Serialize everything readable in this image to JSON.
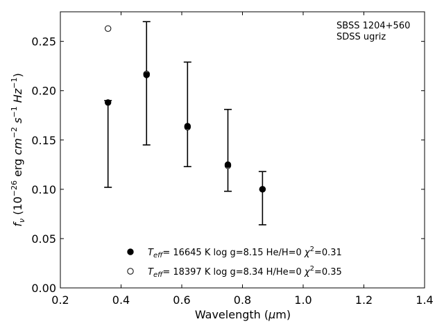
{
  "chart_data": {
    "type": "scatter",
    "title": "",
    "annotations": [
      "SBSS 1204+560",
      "SDSS ugriz"
    ],
    "xlabel": {
      "pre": "Wavelength (",
      "greek": "μ",
      "post": "m)"
    },
    "ylabel": {
      "lead": "f",
      "sub": "ν",
      "rest": " (10",
      "exp1": "−26",
      "mid": " erg ",
      "cm": "cm",
      "exp2": "−2",
      "s": "s",
      "exp3": "−1",
      "hz": "Hz",
      "exp4": "−1",
      "close": ")"
    },
    "xlim": [
      0.2,
      1.4
    ],
    "ylim": [
      0.0,
      0.28
    ],
    "xticks": [
      "0.2",
      "0.4",
      "0.6",
      "0.8",
      "1.0",
      "1.2",
      "1.4"
    ],
    "yticks": [
      "0.00",
      "0.05",
      "0.10",
      "0.15",
      "0.20",
      "0.25"
    ],
    "grid": false,
    "legend_position": "bottom-center",
    "errorbars": [
      {
        "x": 0.357,
        "y": 0.19,
        "ylow": 0.102,
        "yhigh": 0.19
      },
      {
        "x": 0.484,
        "y": 0.216,
        "ylow": 0.145,
        "yhigh": 0.27
      },
      {
        "x": 0.619,
        "y": 0.163,
        "ylow": 0.123,
        "yhigh": 0.229
      },
      {
        "x": 0.752,
        "y": 0.125,
        "ylow": 0.098,
        "yhigh": 0.181
      },
      {
        "x": 0.866,
        "y": 0.1,
        "ylow": 0.064,
        "yhigh": 0.118
      }
    ],
    "series": [
      {
        "marker": "filled",
        "legend": {
          "teff": "T",
          "teff_sub": "eff",
          "text": "= 16645 K  log g=8.15  He/H=0  ",
          "chi": "χ",
          "chi_exp": "2",
          "chi_val": "=0.31"
        },
        "points": [
          {
            "x": 0.357,
            "y": 0.188
          },
          {
            "x": 0.484,
            "y": 0.216
          },
          {
            "x": 0.619,
            "y": 0.164
          },
          {
            "x": 0.752,
            "y": 0.125
          },
          {
            "x": 0.866,
            "y": 0.1
          }
        ]
      },
      {
        "marker": "open",
        "legend": {
          "teff": "T",
          "teff_sub": "eff",
          "text": "= 18397 K  log g=8.34  H/He=0  ",
          "chi": "χ",
          "chi_exp": "2",
          "chi_val": "=0.35"
        },
        "points": [
          {
            "x": 0.357,
            "y": 0.263
          },
          {
            "x": 0.484,
            "y": 0.217
          },
          {
            "x": 0.619,
            "y": 0.163
          },
          {
            "x": 0.752,
            "y": 0.124
          },
          {
            "x": 0.866,
            "y": 0.1
          }
        ]
      }
    ]
  }
}
